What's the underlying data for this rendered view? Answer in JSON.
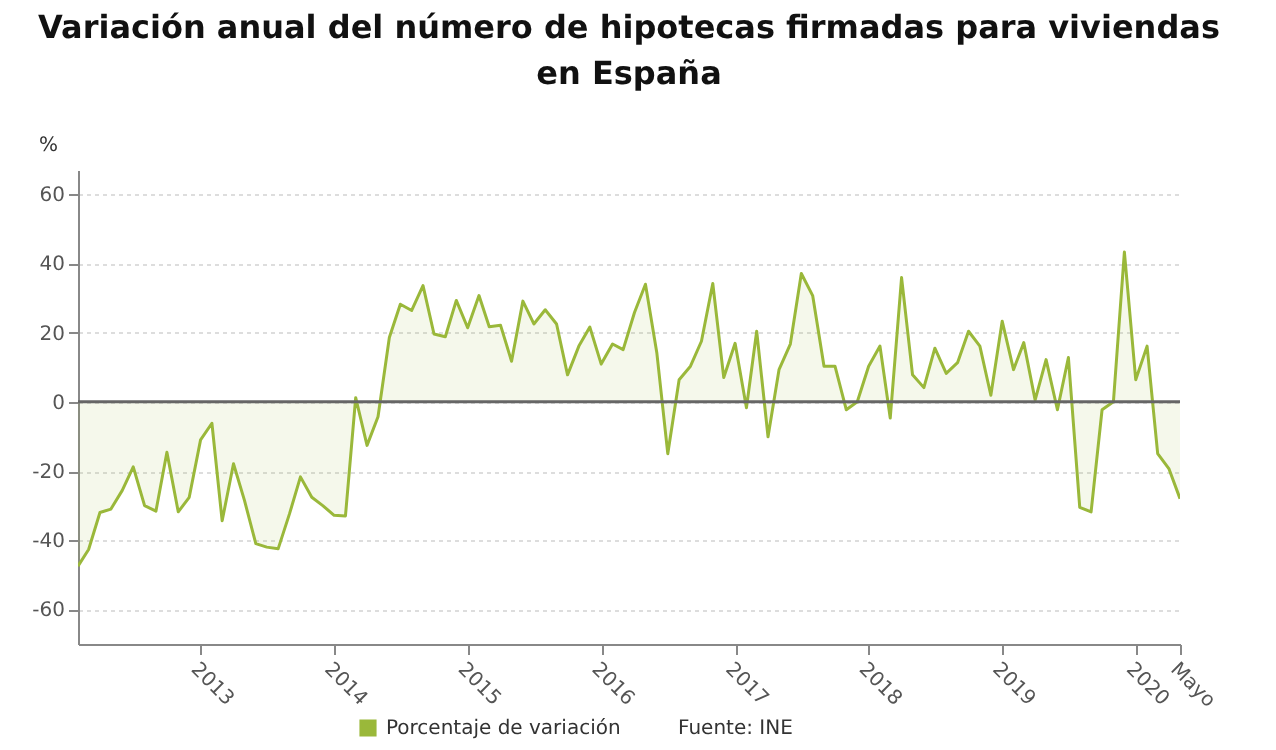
{
  "chart_data": {
    "type": "area",
    "title": "Variación anual del número de hipotecas firmadas para viviendas en España",
    "ylabel": "%",
    "x": [
      "2012-02",
      "2012-03",
      "2012-04",
      "2012-05",
      "2012-06",
      "2012-07",
      "2012-08",
      "2012-09",
      "2012-10",
      "2012-11",
      "2012-12",
      "2013-01",
      "2013-02",
      "2013-03",
      "2013-04",
      "2013-05",
      "2013-06",
      "2013-07",
      "2013-08",
      "2013-09",
      "2013-10",
      "2013-11",
      "2013-12",
      "2014-01",
      "2014-02",
      "2014-03",
      "2014-04",
      "2014-05",
      "2014-06",
      "2014-07",
      "2014-08",
      "2014-09",
      "2014-10",
      "2014-11",
      "2014-12",
      "2015-01",
      "2015-02",
      "2015-03",
      "2015-04",
      "2015-05",
      "2015-06",
      "2015-07",
      "2015-08",
      "2015-09",
      "2015-10",
      "2015-11",
      "2015-12",
      "2016-01",
      "2016-02",
      "2016-03",
      "2016-04",
      "2016-05",
      "2016-06",
      "2016-07",
      "2016-08",
      "2016-09",
      "2016-10",
      "2016-11",
      "2016-12",
      "2017-01",
      "2017-02",
      "2017-03",
      "2017-04",
      "2017-05",
      "2017-06",
      "2017-07",
      "2017-08",
      "2017-09",
      "2017-10",
      "2017-11",
      "2017-12",
      "2018-01",
      "2018-02",
      "2018-03",
      "2018-04",
      "2018-05",
      "2018-06",
      "2018-07",
      "2018-08",
      "2018-09",
      "2018-10",
      "2018-11",
      "2018-12",
      "2019-01",
      "2019-02",
      "2019-03",
      "2019-04",
      "2019-05",
      "2019-06",
      "2019-07",
      "2019-08",
      "2019-09",
      "2019-10",
      "2019-11",
      "2019-12",
      "2020-01",
      "2020-02",
      "2020-03",
      "2020-04",
      "2020-05"
    ],
    "series": [
      {
        "name": "Porcentaje de variación",
        "color": "#9ab83a",
        "values": [
          -47.5,
          -42.7,
          -32,
          -31,
          -25.6,
          -18.8,
          -30,
          -31.6,
          -14.6,
          -31.8,
          -27.6,
          -11,
          -6.2,
          -34.4,
          -17.9,
          -28.5,
          -41,
          -42,
          -42.5,
          -32.4,
          -21.7,
          -27.6,
          -30,
          -32.8,
          -33,
          1.2,
          -12.6,
          -4.3,
          18.6,
          28.2,
          26.4,
          33.6,
          19.6,
          18.8,
          29.3,
          21.4,
          30.7,
          21.7,
          22.1,
          11.7,
          29.1,
          22.5,
          26.6,
          22.5,
          7.8,
          16.1,
          21.6,
          10.9,
          16.7,
          15.1,
          25.8,
          34,
          14.2,
          -15,
          6.4,
          10.3,
          17.5,
          34.2,
          7,
          16.9,
          -1.7,
          20.4,
          -10.1,
          9.3,
          16.7,
          37.1,
          30.7,
          10.3,
          10.3,
          -2.3,
          0,
          10.3,
          16.1,
          -4.7,
          35.9,
          7.8,
          4.1,
          15.5,
          8.2,
          11.3,
          20.4,
          16.1,
          1.9,
          23.3,
          9.3,
          17.1,
          0.5,
          12.2,
          -2.3,
          12.8,
          -30.5,
          -31.8,
          -2.3,
          0,
          43.3,
          6.4,
          16.1,
          -15,
          -19.4,
          -28
        ]
      }
    ],
    "xlim": [
      "2012-02",
      "2020-05"
    ],
    "xticks": [
      {
        "value": "2013-01",
        "label": "2013"
      },
      {
        "value": "2014-01",
        "label": "2014"
      },
      {
        "value": "2015-01",
        "label": "2015"
      },
      {
        "value": "2016-01",
        "label": "2016"
      },
      {
        "value": "2017-01",
        "label": "2017"
      },
      {
        "value": "2018-01",
        "label": "2018"
      },
      {
        "value": "2019-01",
        "label": "2019"
      },
      {
        "value": "2020-01",
        "label": "2020"
      },
      {
        "value": "2020-05",
        "label": "Mayo"
      }
    ],
    "ylim": [
      -70,
      67
    ],
    "yticks": [
      -60,
      -40,
      -20,
      0,
      20,
      40,
      60
    ],
    "ref_lines": [
      {
        "axis": "y",
        "value": 0,
        "color": "#666666"
      }
    ],
    "grid": "y",
    "legend": "bottom",
    "annotations": [
      "Fuente: INE"
    ]
  }
}
